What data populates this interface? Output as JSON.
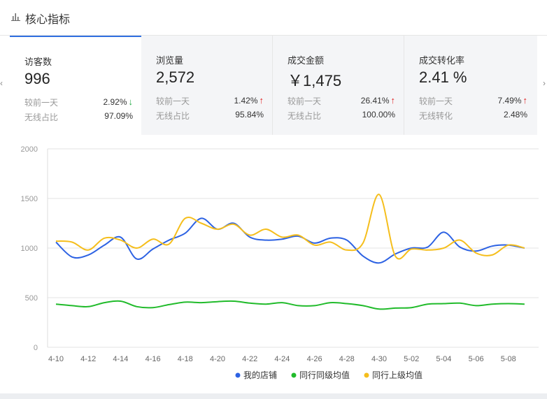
{
  "header": {
    "title": "核心指标",
    "icon": "bar-chart-icon"
  },
  "nav": {
    "prev": "‹",
    "next": "›"
  },
  "cards": [
    {
      "label": "访客数",
      "value": "996",
      "row1_label": "较前一天",
      "row1_value": "2.92%",
      "row1_trend": "down",
      "row2_label": "无线占比",
      "row2_value": "97.09%"
    },
    {
      "label": "浏览量",
      "value": "2,572",
      "row1_label": "较前一天",
      "row1_value": "1.42%",
      "row1_trend": "up",
      "row2_label": "无线占比",
      "row2_value": "95.84%"
    },
    {
      "label": "成交金额",
      "value": "￥1,475",
      "row1_label": "较前一天",
      "row1_value": "26.41%",
      "row1_trend": "up",
      "row2_label": "无线占比",
      "row2_value": "100.00%"
    },
    {
      "label": "成交转化率",
      "value": "2.41 %",
      "row1_label": "较前一天",
      "row1_value": "7.49%",
      "row1_trend": "up",
      "row2_label": "无线转化",
      "row2_value": "2.48%"
    }
  ],
  "trend_arrows": {
    "up": "↑",
    "down": "↓"
  },
  "colors": {
    "accent": "#2f6fe0",
    "up": "#e02020",
    "down": "#22aa44"
  },
  "chart_data": {
    "type": "line",
    "x": [
      "4-10",
      "4-11",
      "4-12",
      "4-13",
      "4-14",
      "4-15",
      "4-16",
      "4-17",
      "4-18",
      "4-19",
      "4-20",
      "4-21",
      "4-22",
      "4-23",
      "4-24",
      "4-25",
      "4-26",
      "4-27",
      "4-28",
      "4-29",
      "4-30",
      "5-01",
      "5-02",
      "5-03",
      "5-04",
      "5-05",
      "5-06",
      "5-07",
      "5-08",
      "5-09"
    ],
    "x_tick_labels": [
      "4-10",
      "4-12",
      "4-14",
      "4-16",
      "4-18",
      "4-20",
      "4-22",
      "4-24",
      "4-26",
      "4-28",
      "4-30",
      "5-02",
      "5-04",
      "5-06",
      "5-08"
    ],
    "ylim": [
      0,
      2000
    ],
    "y_ticks": [
      "0",
      "500",
      "1000",
      "1500",
      "2000"
    ],
    "grid": true,
    "legend_position": "bottom",
    "series": [
      {
        "name": "我的店铺",
        "color": "#2d62e3",
        "values": [
          1060,
          910,
          930,
          1030,
          1110,
          890,
          990,
          1080,
          1150,
          1300,
          1190,
          1250,
          1110,
          1080,
          1090,
          1120,
          1050,
          1100,
          1080,
          920,
          850,
          940,
          1000,
          1010,
          1160,
          1010,
          970,
          1020,
          1030,
          1000
        ]
      },
      {
        "name": "同行同级均值",
        "color": "#21bb2b",
        "values": [
          435,
          420,
          410,
          450,
          465,
          410,
          400,
          430,
          455,
          450,
          460,
          465,
          445,
          435,
          450,
          420,
          420,
          450,
          440,
          420,
          385,
          395,
          400,
          435,
          440,
          445,
          420,
          435,
          440,
          435
        ]
      },
      {
        "name": "同行上级均值",
        "color": "#f5be1c",
        "values": [
          1070,
          1060,
          980,
          1100,
          1080,
          1000,
          1090,
          1040,
          1300,
          1250,
          1190,
          1240,
          1130,
          1190,
          1110,
          1130,
          1030,
          1060,
          980,
          1050,
          1540,
          920,
          990,
          980,
          1000,
          1080,
          950,
          930,
          1030,
          1000
        ]
      }
    ]
  }
}
